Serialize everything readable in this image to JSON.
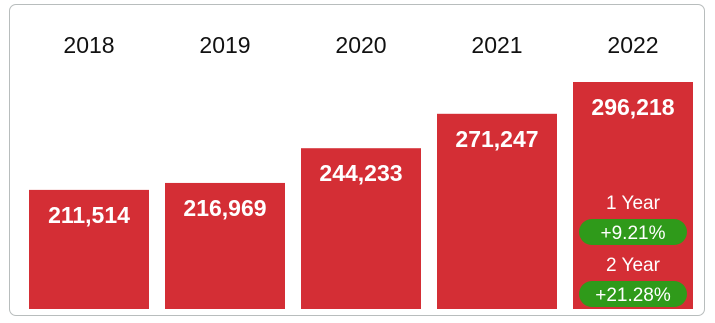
{
  "chart_data": {
    "type": "bar",
    "categories": [
      "2018",
      "2019",
      "2020",
      "2021",
      "2022"
    ],
    "values": [
      211514,
      216969,
      244233,
      271247,
      296218
    ],
    "value_labels": [
      "211,514",
      "216,969",
      "244,233",
      "271,247",
      "296,218"
    ],
    "title": "",
    "xlabel": "",
    "ylabel": "",
    "grid": false,
    "bar_color": "#d42e35",
    "changes": [
      {
        "label": "1 Year",
        "value": "+9.21%",
        "color": "#2f9a1a"
      },
      {
        "label": "2 Year",
        "value": "+21.28%",
        "color": "#2f9a1a"
      }
    ]
  }
}
